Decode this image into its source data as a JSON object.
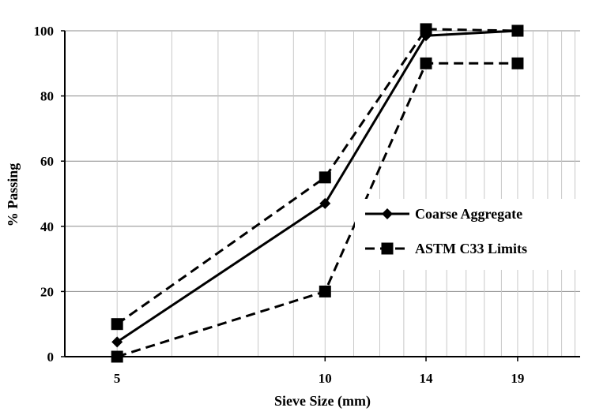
{
  "chart_data": {
    "type": "line",
    "x_scale": "log",
    "x": [
      5,
      10,
      14,
      19
    ],
    "categories": [
      "5",
      "10",
      "14",
      "19"
    ],
    "xlabel": "Sieve Size (mm)",
    "ylabel": "% Passing",
    "ylim": [
      0,
      100
    ],
    "yticks": [
      "0",
      "20",
      "40",
      "60",
      "80",
      "100"
    ],
    "grid": true,
    "legend_position": "right",
    "series": [
      {
        "name": "Coarse Aggregate",
        "values": [
          4.5,
          47,
          98.5,
          100
        ],
        "marker": "diamond",
        "dash": "solid",
        "color": "#000000"
      },
      {
        "name": "ASTM C33 Limits",
        "values": [
          10,
          55,
          100.5,
          100
        ],
        "marker": "square",
        "dash": "dashed",
        "color": "#000000"
      },
      {
        "name": "",
        "values": [
          0,
          20,
          90,
          90
        ],
        "marker": "square",
        "dash": "dashed",
        "color": "#000000",
        "legend_hidden": true
      }
    ]
  }
}
